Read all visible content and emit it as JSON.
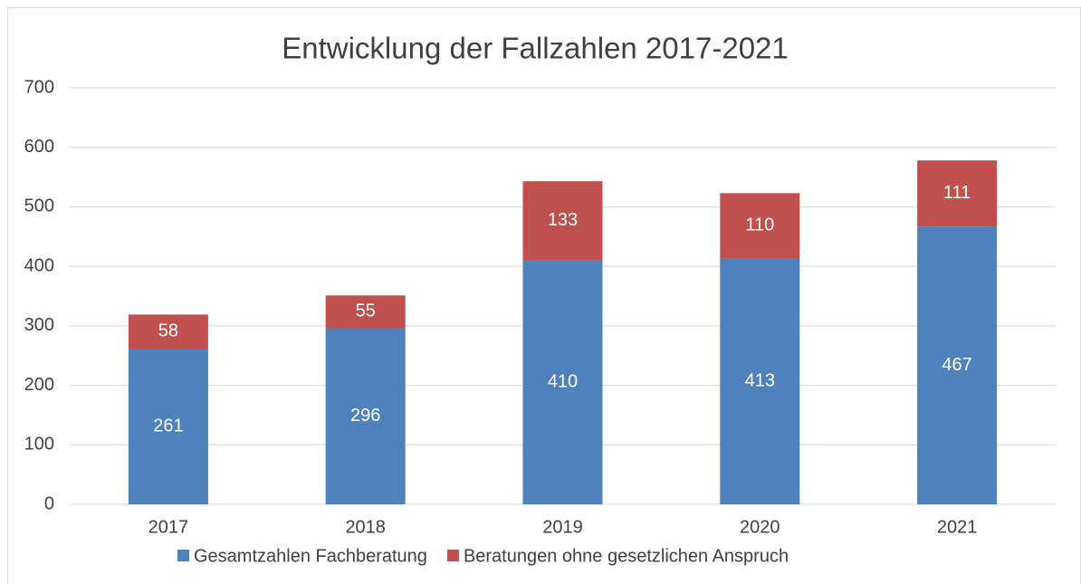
{
  "chart_data": {
    "type": "stacked_bar",
    "title": "Entwicklung der Fallzahlen 2017-2021",
    "categories": [
      "2017",
      "2018",
      "2019",
      "2020",
      "2021"
    ],
    "series": [
      {
        "name": "Gesamtzahlen Fachberatung",
        "color": "#4f81bd",
        "values": [
          261,
          296,
          410,
          413,
          467
        ]
      },
      {
        "name": "Beratungen ohne gesetzlichen Anspruch",
        "color": "#c0504d",
        "values": [
          58,
          55,
          133,
          110,
          111
        ]
      }
    ],
    "ylim": [
      0,
      700
    ],
    "yticks": [
      0,
      100,
      200,
      300,
      400,
      500,
      600,
      700
    ],
    "grid": true,
    "legend": "bottom"
  }
}
